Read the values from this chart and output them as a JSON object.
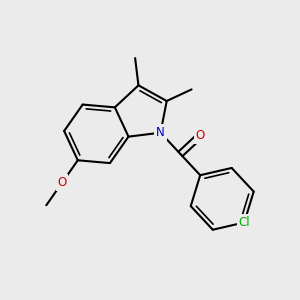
{
  "background_color": "#ebebeb",
  "figsize": [
    3.0,
    3.0
  ],
  "dpi": 100,
  "bond_lw": 1.5,
  "bond_color": "black",
  "N_color": "#0000cc",
  "O_color": "#cc0000",
  "Cl_color": "#00aa00",
  "label_fontsize": 8.5,
  "methoxy_label": "O",
  "methoxy_CH3_label": "",
  "carbonyl_O_label": "O",
  "N_label": "N",
  "Cl_label": "Cl"
}
